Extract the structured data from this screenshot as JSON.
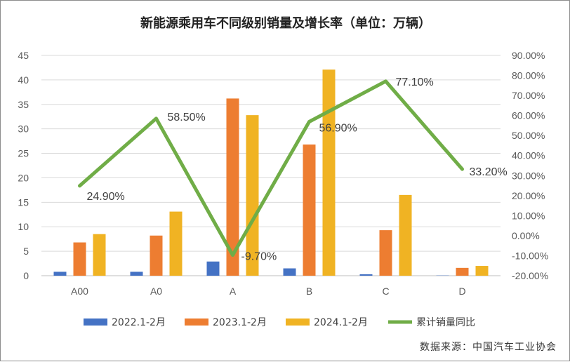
{
  "chart_data": {
    "type": "bar",
    "title": "新能源乘用车不同级别销量及增长率（单位：万辆）",
    "categories": [
      "A00",
      "A0",
      "A",
      "B",
      "C",
      "D"
    ],
    "series": [
      {
        "name": "2022.1-2月",
        "type": "bar",
        "axis": "left",
        "color": "#4472C4",
        "values": [
          0.8,
          0.8,
          2.9,
          1.5,
          0.3,
          0.05
        ]
      },
      {
        "name": "2023.1-2月",
        "type": "bar",
        "axis": "left",
        "color": "#ED7D31",
        "values": [
          6.8,
          8.2,
          36.2,
          26.8,
          9.3,
          1.6
        ]
      },
      {
        "name": "2024.1-2月",
        "type": "bar",
        "axis": "left",
        "color": "#F0B323",
        "values": [
          8.5,
          13.1,
          32.8,
          42.1,
          16.5,
          2.0
        ]
      },
      {
        "name": "累计销量同比",
        "type": "line",
        "axis": "right",
        "color": "#70AD47",
        "values": [
          24.9,
          58.5,
          -9.7,
          56.9,
          77.1,
          33.2
        ],
        "labels": [
          "24.90%",
          "58.50%",
          "-9.70%",
          "56.90%",
          "77.10%",
          "33.20%"
        ]
      }
    ],
    "y_left": {
      "min": 0,
      "max": 45,
      "step": 5,
      "ticks": [
        "0",
        "5",
        "10",
        "15",
        "20",
        "25",
        "30",
        "35",
        "40",
        "45"
      ]
    },
    "y_right": {
      "min": -20,
      "max": 90,
      "step": 10,
      "ticks": [
        "-20.00%",
        "-10.00%",
        "0.00%",
        "10.00%",
        "20.00%",
        "30.00%",
        "40.00%",
        "50.00%",
        "60.00%",
        "70.00%",
        "80.00%",
        "90.00%"
      ]
    },
    "grid": true,
    "legend": "bottom"
  },
  "source": "数据来源：中国汽车工业协会"
}
